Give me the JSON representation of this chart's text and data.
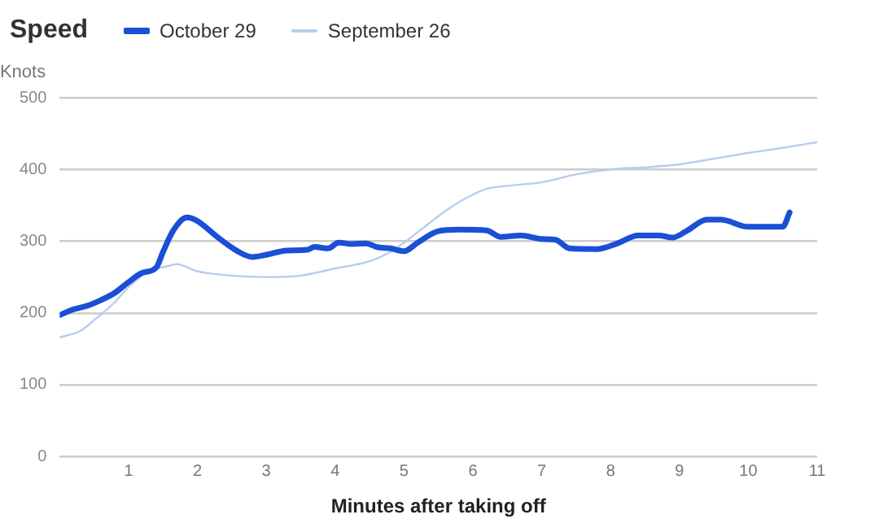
{
  "chart_data": {
    "type": "line",
    "title": "Speed",
    "ylabel": "Knots",
    "xlabel": "Minutes after taking off",
    "xlim": [
      0,
      11
    ],
    "xticks": [
      1,
      2,
      3,
      4,
      5,
      6,
      7,
      8,
      9,
      10,
      11
    ],
    "ylim": [
      0,
      500
    ],
    "yticks": [
      0,
      100,
      200,
      300,
      400,
      500
    ],
    "grid": "y",
    "legend": "top left",
    "marker": "none",
    "line_style": "solid",
    "series": [
      {
        "name": "October 29",
        "color": "#1a4fd6",
        "x": [
          0,
          0.2,
          0.4,
          0.6,
          0.8,
          1.0,
          1.2,
          1.4,
          1.5,
          1.65,
          1.85,
          2.0,
          2.3,
          2.6,
          2.8,
          3.0,
          3.3,
          3.6,
          3.7,
          3.9,
          4.05,
          4.25,
          4.45,
          4.6,
          4.8,
          5.0,
          5.2,
          5.5,
          5.8,
          6.2,
          6.4,
          6.7,
          7.0,
          7.2,
          7.4,
          7.8,
          8.1,
          8.4,
          8.7,
          8.9,
          9.1,
          9.4,
          9.6,
          10.0,
          10.5,
          10.6
        ],
        "values": [
          197,
          205,
          210,
          218,
          228,
          243,
          256,
          263,
          285,
          315,
          333,
          328,
          305,
          285,
          278,
          281,
          287,
          288,
          292,
          290,
          298,
          296,
          297,
          292,
          290,
          286,
          298,
          314,
          316,
          315,
          306,
          308,
          303,
          302,
          290,
          289,
          297,
          308,
          308,
          305,
          314,
          330,
          330,
          320,
          320,
          340
        ]
      },
      {
        "name": "September 26",
        "color": "#b8cdf0",
        "x": [
          0,
          0.3,
          0.5,
          0.8,
          1.0,
          1.3,
          1.6,
          1.7,
          2.0,
          2.5,
          3.0,
          3.5,
          4.0,
          4.5,
          4.8,
          5.0,
          5.3,
          5.6,
          5.9,
          6.2,
          6.6,
          7.0,
          7.5,
          8.0,
          8.5,
          9.0,
          9.5,
          10.0,
          10.5,
          11.0
        ],
        "values": [
          166,
          175,
          190,
          215,
          236,
          258,
          266,
          268,
          258,
          252,
          250,
          252,
          262,
          272,
          285,
          298,
          320,
          342,
          360,
          373,
          378,
          382,
          393,
          400,
          403,
          407,
          415,
          423,
          430,
          438
        ]
      }
    ]
  }
}
